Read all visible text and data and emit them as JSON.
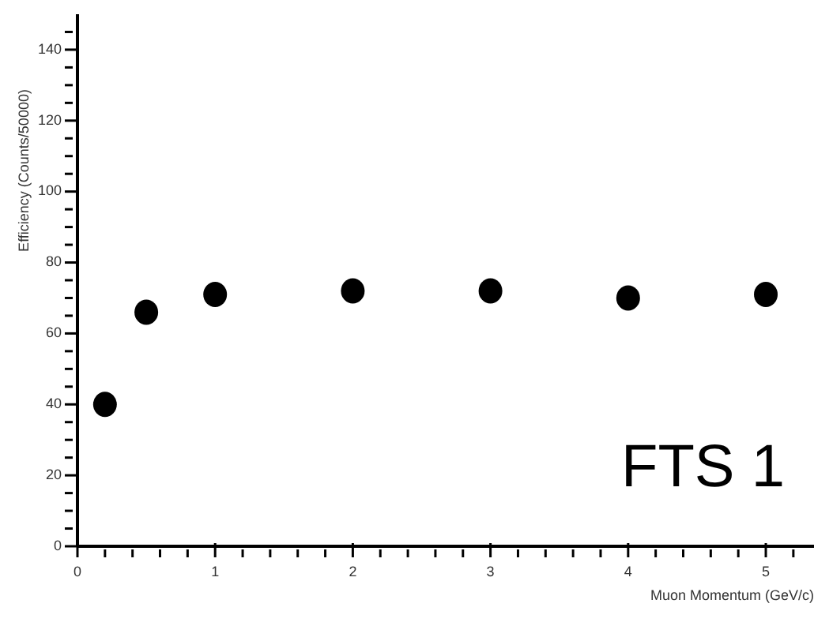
{
  "chart_data": {
    "type": "scatter",
    "xlabel": "Muon Momentum (GeV/c)",
    "ylabel": "Efficiency (Counts/50000)",
    "annotations": [
      "FTS 1"
    ],
    "x": [
      0.2,
      0.5,
      1,
      2,
      3,
      4,
      5
    ],
    "series": [
      {
        "color": "#000000",
        "values": [
          40,
          66,
          71,
          72,
          72,
          70,
          71
        ]
      }
    ],
    "xlim": [
      0,
      5.35
    ],
    "ylim": [
      0,
      150
    ],
    "xticks": [
      0,
      {
        "value": 0.2,
        "label": null
      },
      {
        "value": 0.4,
        "label": null
      },
      {
        "value": 0.6,
        "label": null
      },
      {
        "value": 0.8,
        "label": null
      },
      1,
      {
        "value": 1.2,
        "label": null
      },
      {
        "value": 1.4,
        "label": null
      },
      {
        "value": 1.6,
        "label": null
      },
      {
        "value": 1.8,
        "label": null
      },
      2,
      {
        "value": 2.2,
        "label": null
      },
      {
        "value": 2.4,
        "label": null
      },
      {
        "value": 2.6,
        "label": null
      },
      {
        "value": 2.8,
        "label": null
      },
      3,
      {
        "value": 3.2,
        "label": null
      },
      {
        "value": 3.4,
        "label": null
      },
      {
        "value": 3.6,
        "label": null
      },
      {
        "value": 3.8,
        "label": null
      },
      4,
      {
        "value": 4.2,
        "label": null
      },
      {
        "value": 4.4,
        "label": null
      },
      {
        "value": 4.6,
        "label": null
      },
      {
        "value": 4.8,
        "label": null
      },
      5,
      {
        "value": 5.2,
        "label": null
      }
    ],
    "yticks": [
      0,
      {
        "value": 5,
        "label": null
      },
      {
        "value": 10,
        "label": null
      },
      {
        "value": 15,
        "label": null
      },
      20,
      {
        "value": 25,
        "label": null
      },
      {
        "value": 30,
        "label": null
      },
      {
        "value": 35,
        "label": null
      },
      40,
      {
        "value": 45,
        "label": null
      },
      {
        "value": 50,
        "label": null
      },
      {
        "value": 55,
        "label": null
      },
      60,
      {
        "value": 65,
        "label": null
      },
      {
        "value": 70,
        "label": null
      },
      {
        "value": 75,
        "label": null
      },
      80,
      {
        "value": 85,
        "label": null
      },
      {
        "value": 90,
        "label": null
      },
      {
        "value": 95,
        "label": null
      },
      100,
      {
        "value": 105,
        "label": null
      },
      {
        "value": 110,
        "label": null
      },
      {
        "value": 115,
        "label": null
      },
      120,
      {
        "value": 125,
        "label": null
      },
      {
        "value": 130,
        "label": null
      },
      {
        "value": 135,
        "label": null
      },
      140,
      {
        "value": 145,
        "label": null
      }
    ],
    "marker": "circle",
    "grid": false,
    "legend": false
  }
}
